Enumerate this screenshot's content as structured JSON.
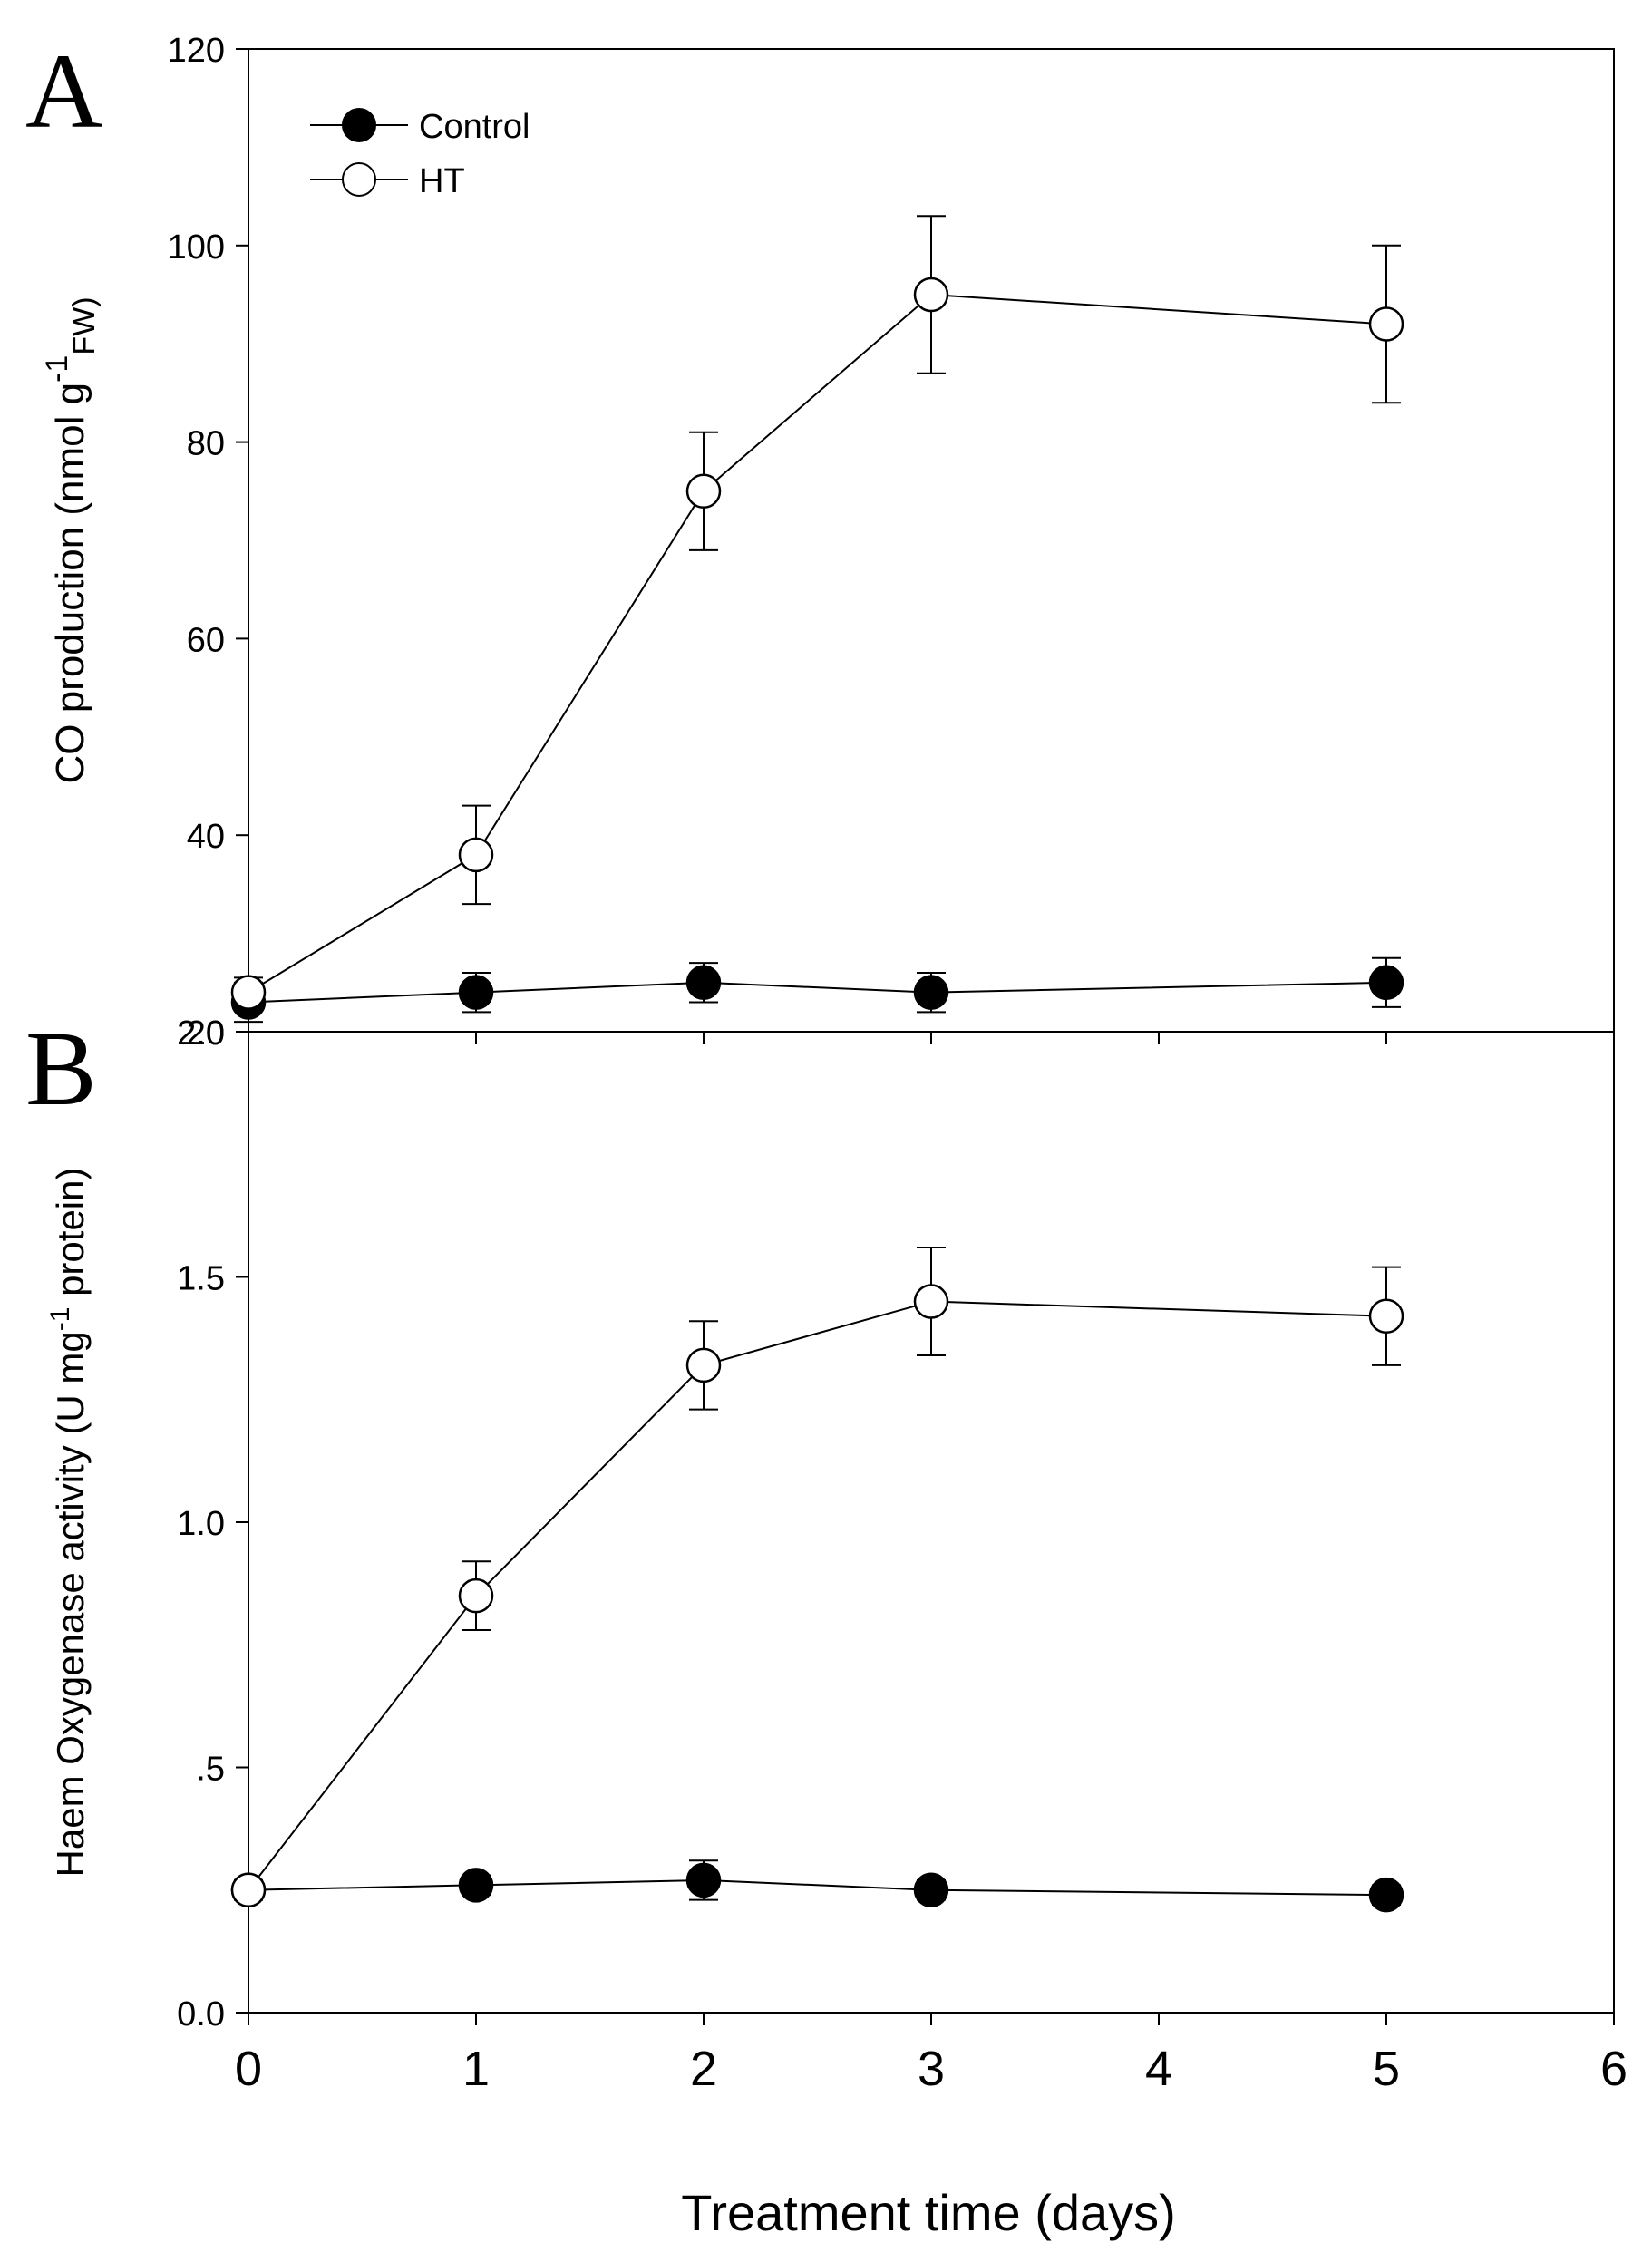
{
  "chart_data": [
    {
      "panel": "A",
      "type": "line",
      "ylabel_parts": [
        "CO production (nmol g",
        "-1",
        "FW)"
      ],
      "ylim": [
        20,
        120
      ],
      "yticks": [
        20,
        40,
        60,
        80,
        100,
        120
      ],
      "ytick_labels": [
        "20",
        "40",
        "60",
        "80",
        "100",
        "120"
      ],
      "x": [
        0,
        1,
        2,
        3,
        5
      ],
      "legend_position": "top-left",
      "series": [
        {
          "name": "Control",
          "marker": "filled-circle",
          "values": [
            23,
            24,
            25,
            24,
            25
          ],
          "errors": [
            2,
            2,
            2,
            2,
            2.5
          ]
        },
        {
          "name": "HT",
          "marker": "open-circle",
          "values": [
            24,
            38,
            75,
            95,
            92
          ],
          "errors": [
            1.5,
            5,
            6,
            8,
            8
          ]
        }
      ]
    },
    {
      "panel": "B",
      "type": "line",
      "ylabel_parts": [
        "Haem Oxygenase activity (U mg",
        "-1",
        " protein)"
      ],
      "ylim": [
        0,
        2
      ],
      "yticks": [
        0,
        0.5,
        1,
        1.5,
        2
      ],
      "ytick_labels": [
        "0.0",
        ".5",
        "1.0",
        "1.5",
        "2.0"
      ],
      "x": [
        0,
        1,
        2,
        3,
        5
      ],
      "series": [
        {
          "name": "Control",
          "marker": "filled-circle",
          "values": [
            0.25,
            0.26,
            0.27,
            0.25,
            0.24
          ],
          "errors": [
            0.02,
            0.02,
            0.04,
            0.02,
            0.02
          ]
        },
        {
          "name": "HT",
          "marker": "open-circle",
          "values": [
            0.25,
            0.85,
            1.32,
            1.45,
            1.42
          ],
          "errors": [
            0.02,
            0.07,
            0.09,
            0.11,
            0.1
          ]
        }
      ]
    }
  ],
  "shared_x": {
    "label": "Treatment time (days)",
    "xlim": [
      0,
      6
    ],
    "ticks": [
      0,
      1,
      2,
      3,
      4,
      5,
      6
    ],
    "tick_labels": [
      "0",
      "1",
      "2",
      "3",
      "4",
      "5",
      "6"
    ]
  }
}
